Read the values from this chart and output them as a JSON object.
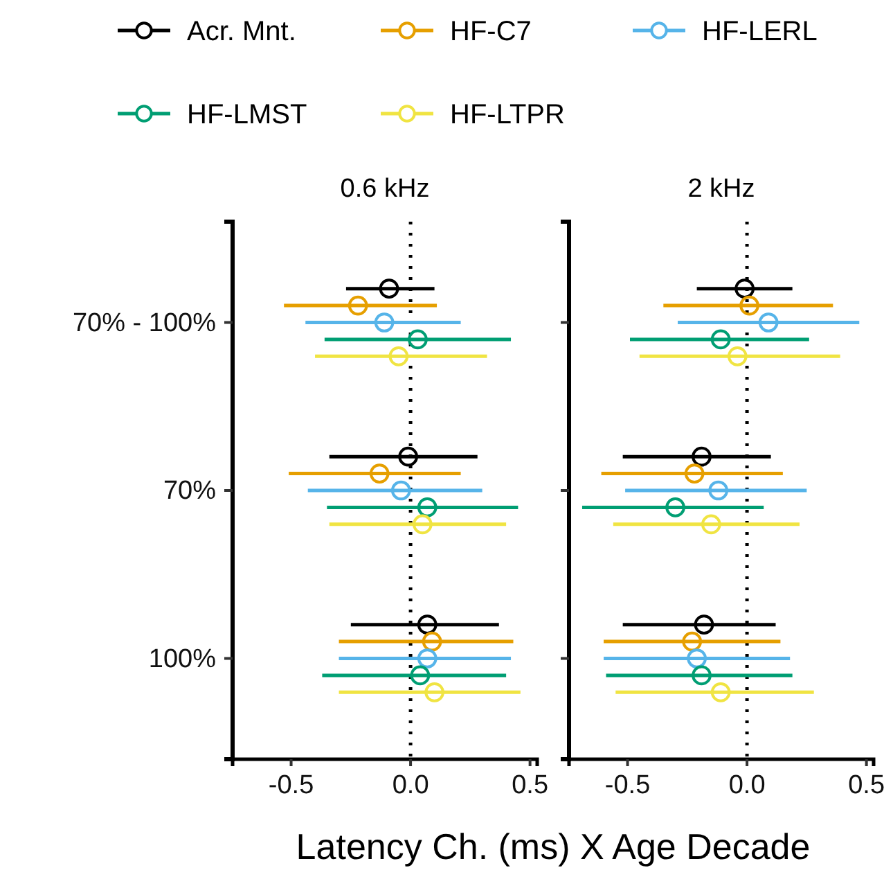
{
  "chart_data": [
    {
      "type": "scatter",
      "orientation": "horizontal",
      "title": "0.6 kHz",
      "xlabel": "Latency Ch. (ms) X Age Decade",
      "categories": [
        "70% - 100%",
        "70%",
        "100%"
      ],
      "xlim": [
        -0.745,
        0.53
      ],
      "xticks": [
        {
          "value": -0.5,
          "label": "-0.5"
        },
        {
          "value": 0,
          "label": "0.0"
        },
        {
          "value": 0.5,
          "label": "0.5"
        }
      ],
      "marker": "circle",
      "legend": "top",
      "grid": false,
      "ref_lines": [
        {
          "axis": "x",
          "value": 0,
          "line_style": "dotted",
          "color": "#000000"
        }
      ],
      "series": [
        {
          "name": "Acr. Mnt.",
          "color": "#000000",
          "values": [
            -0.09,
            -0.01,
            0.07
          ],
          "errors": [
            [
              -0.27,
              0.1
            ],
            [
              -0.34,
              0.28
            ],
            [
              -0.25,
              0.37
            ]
          ]
        },
        {
          "name": "HF-C7",
          "color": "#e69f00",
          "values": [
            -0.22,
            -0.13,
            0.09
          ],
          "errors": [
            [
              -0.53,
              0.11
            ],
            [
              -0.51,
              0.21
            ],
            [
              -0.3,
              0.43
            ]
          ]
        },
        {
          "name": "HF-LERL",
          "color": "#56b4e9",
          "values": [
            -0.11,
            -0.04,
            0.07
          ],
          "errors": [
            [
              -0.44,
              0.21
            ],
            [
              -0.43,
              0.3
            ],
            [
              -0.3,
              0.42
            ]
          ]
        },
        {
          "name": "HF-LMST",
          "color": "#009e73",
          "values": [
            0.03,
            0.07,
            0.04
          ],
          "errors": [
            [
              -0.36,
              0.42
            ],
            [
              -0.35,
              0.45
            ],
            [
              -0.37,
              0.4
            ]
          ]
        },
        {
          "name": "HF-LTPR",
          "color": "#f0e442",
          "values": [
            -0.05,
            0.05,
            0.1
          ],
          "errors": [
            [
              -0.4,
              0.32
            ],
            [
              -0.34,
              0.4
            ],
            [
              -0.3,
              0.46
            ]
          ]
        }
      ]
    },
    {
      "type": "scatter",
      "orientation": "horizontal",
      "title": "2 kHz",
      "categories": [
        null,
        null,
        null
      ],
      "xlim": [
        -0.745,
        0.53
      ],
      "xticks": [
        {
          "value": -0.5,
          "label": "-0.5"
        },
        {
          "value": 0,
          "label": "0.0"
        },
        {
          "value": 0.5,
          "label": "0.5"
        }
      ],
      "marker": "circle",
      "grid": false,
      "tick_labels": "x",
      "ref_lines": [
        {
          "axis": "x",
          "value": 0,
          "line_style": "dotted",
          "color": "#000000"
        }
      ],
      "series": [
        {
          "color": "#000000",
          "values": [
            -0.01,
            -0.19,
            -0.18
          ],
          "errors": [
            [
              -0.21,
              0.19
            ],
            [
              -0.52,
              0.1
            ],
            [
              -0.52,
              0.12
            ]
          ]
        },
        {
          "color": "#e69f00",
          "values": [
            0.01,
            -0.22,
            -0.23
          ],
          "errors": [
            [
              -0.35,
              0.36
            ],
            [
              -0.61,
              0.15
            ],
            [
              -0.6,
              0.14
            ]
          ]
        },
        {
          "color": "#56b4e9",
          "values": [
            0.09,
            -0.12,
            -0.21
          ],
          "errors": [
            [
              -0.29,
              0.47
            ],
            [
              -0.51,
              0.25
            ],
            [
              -0.6,
              0.18
            ]
          ]
        },
        {
          "color": "#009e73",
          "values": [
            -0.11,
            -0.3,
            -0.19
          ],
          "errors": [
            [
              -0.49,
              0.26
            ],
            [
              -0.69,
              0.07
            ],
            [
              -0.59,
              0.19
            ]
          ]
        },
        {
          "color": "#f0e442",
          "values": [
            -0.04,
            -0.15,
            -0.11
          ],
          "errors": [
            [
              -0.45,
              0.39
            ],
            [
              -0.56,
              0.22
            ],
            [
              -0.55,
              0.28
            ]
          ]
        }
      ]
    }
  ]
}
